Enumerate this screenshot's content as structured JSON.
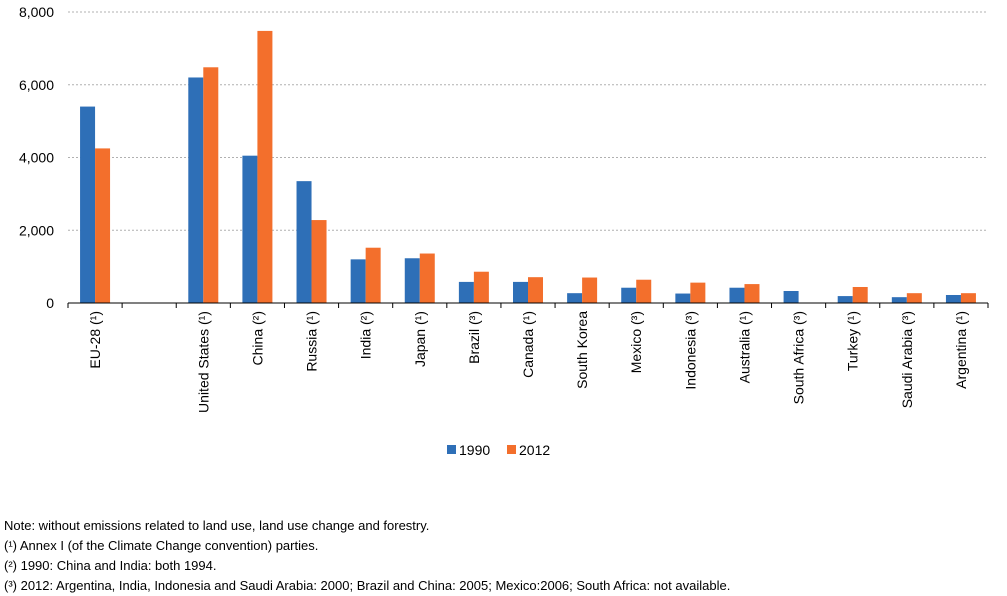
{
  "chart_data": {
    "type": "bar",
    "title": "",
    "xlabel": "",
    "ylabel": "",
    "ylim": [
      0,
      8000
    ],
    "yticks": [
      0,
      2000,
      4000,
      6000,
      8000
    ],
    "ytick_labels": [
      "0",
      "2,000",
      "4,000",
      "6,000",
      "8,000"
    ],
    "grid": true,
    "legend_position": "bottom-center",
    "categories": [
      "EU-28 (¹)",
      "",
      "United States (¹)",
      "China (²)",
      "Russia (¹)",
      "India (²)",
      "Japan (¹)",
      "Brazil (³)",
      "Canada (¹)",
      "South Korea",
      "Mexico (³)",
      "Indonesia (³)",
      "Australia (¹)",
      "South Africa (³)",
      "Turkey (¹)",
      "Saudi Arabia (³)",
      "Argentina (¹)"
    ],
    "series": [
      {
        "name": "1990",
        "color": "#2e6fb7",
        "values": [
          5400,
          null,
          6200,
          4050,
          3350,
          1200,
          1230,
          580,
          580,
          270,
          420,
          260,
          420,
          330,
          190,
          160,
          220
        ]
      },
      {
        "name": "2012",
        "color": "#f36f2c",
        "values": [
          4250,
          null,
          6480,
          7480,
          2280,
          1520,
          1360,
          860,
          710,
          700,
          640,
          560,
          520,
          null,
          440,
          270,
          270
        ]
      }
    ]
  },
  "notes": [
    "Note: without emissions related to land use, land use change and forestry.",
    "(¹) Annex I (of the Climate Change convention) parties.",
    "(²) 1990: China and India: both 1994.",
    "(³) 2012: Argentina, India, Indonesia and Saudi Arabia: 2000; Brazil and China: 2005; Mexico:2006; South Africa: not available."
  ]
}
